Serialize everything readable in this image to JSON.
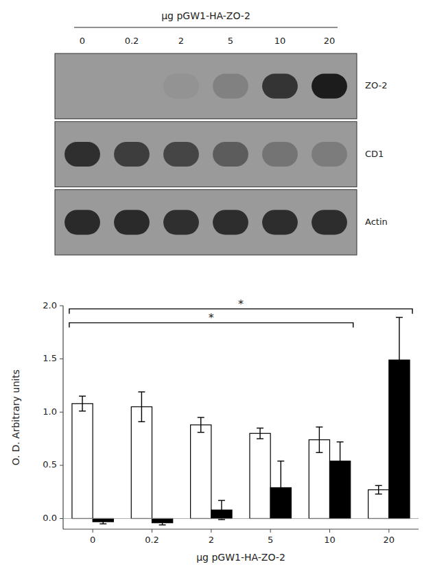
{
  "chart_data": [
    {
      "type": "blot",
      "title": "μg pGW1-HA-ZO-2",
      "categories": [
        "0",
        "0.2",
        "2",
        "5",
        "10",
        "20"
      ],
      "series": [
        {
          "name": "ZO-2",
          "values": [
            0.0,
            0.0,
            0.05,
            0.18,
            0.75,
            0.92
          ]
        },
        {
          "name": "CD1",
          "values": [
            0.78,
            0.68,
            0.62,
            0.45,
            0.28,
            0.22
          ]
        },
        {
          "name": "Actin",
          "values": [
            0.82,
            0.82,
            0.78,
            0.8,
            0.8,
            0.8
          ]
        }
      ]
    },
    {
      "type": "bar",
      "xlabel": "μg pGW1-HA-ZO-2",
      "ylabel": "O. D. Arbitrary units",
      "categories": [
        "0",
        "0.2",
        "2",
        "5",
        "10",
        "20"
      ],
      "series": [
        {
          "color": "#FFFFFF",
          "values": [
            1.08,
            1.05,
            0.88,
            0.8,
            0.74,
            0.27
          ],
          "errors": [
            0.07,
            0.14,
            0.07,
            0.05,
            0.12,
            0.04
          ]
        },
        {
          "color": "#000000",
          "values": [
            -0.03,
            -0.04,
            0.08,
            0.29,
            0.54,
            1.49
          ],
          "errors": [
            0.02,
            0.02,
            0.09,
            0.25,
            0.18,
            0.4
          ]
        }
      ],
      "ylim": [
        -0.1,
        2.0
      ],
      "yticks": [
        {
          "value": 0.0,
          "label": "0.0"
        },
        0.5,
        {
          "value": 1.0,
          "label": "1.0"
        },
        1.5,
        {
          "value": 2.0,
          "label": "2.0"
        }
      ],
      "annotations": [
        {
          "text": "*",
          "start": "0",
          "end": "20",
          "y": 1.97
        },
        {
          "text": "*",
          "start": "0",
          "end": "10",
          "y": 1.84
        }
      ]
    }
  ]
}
